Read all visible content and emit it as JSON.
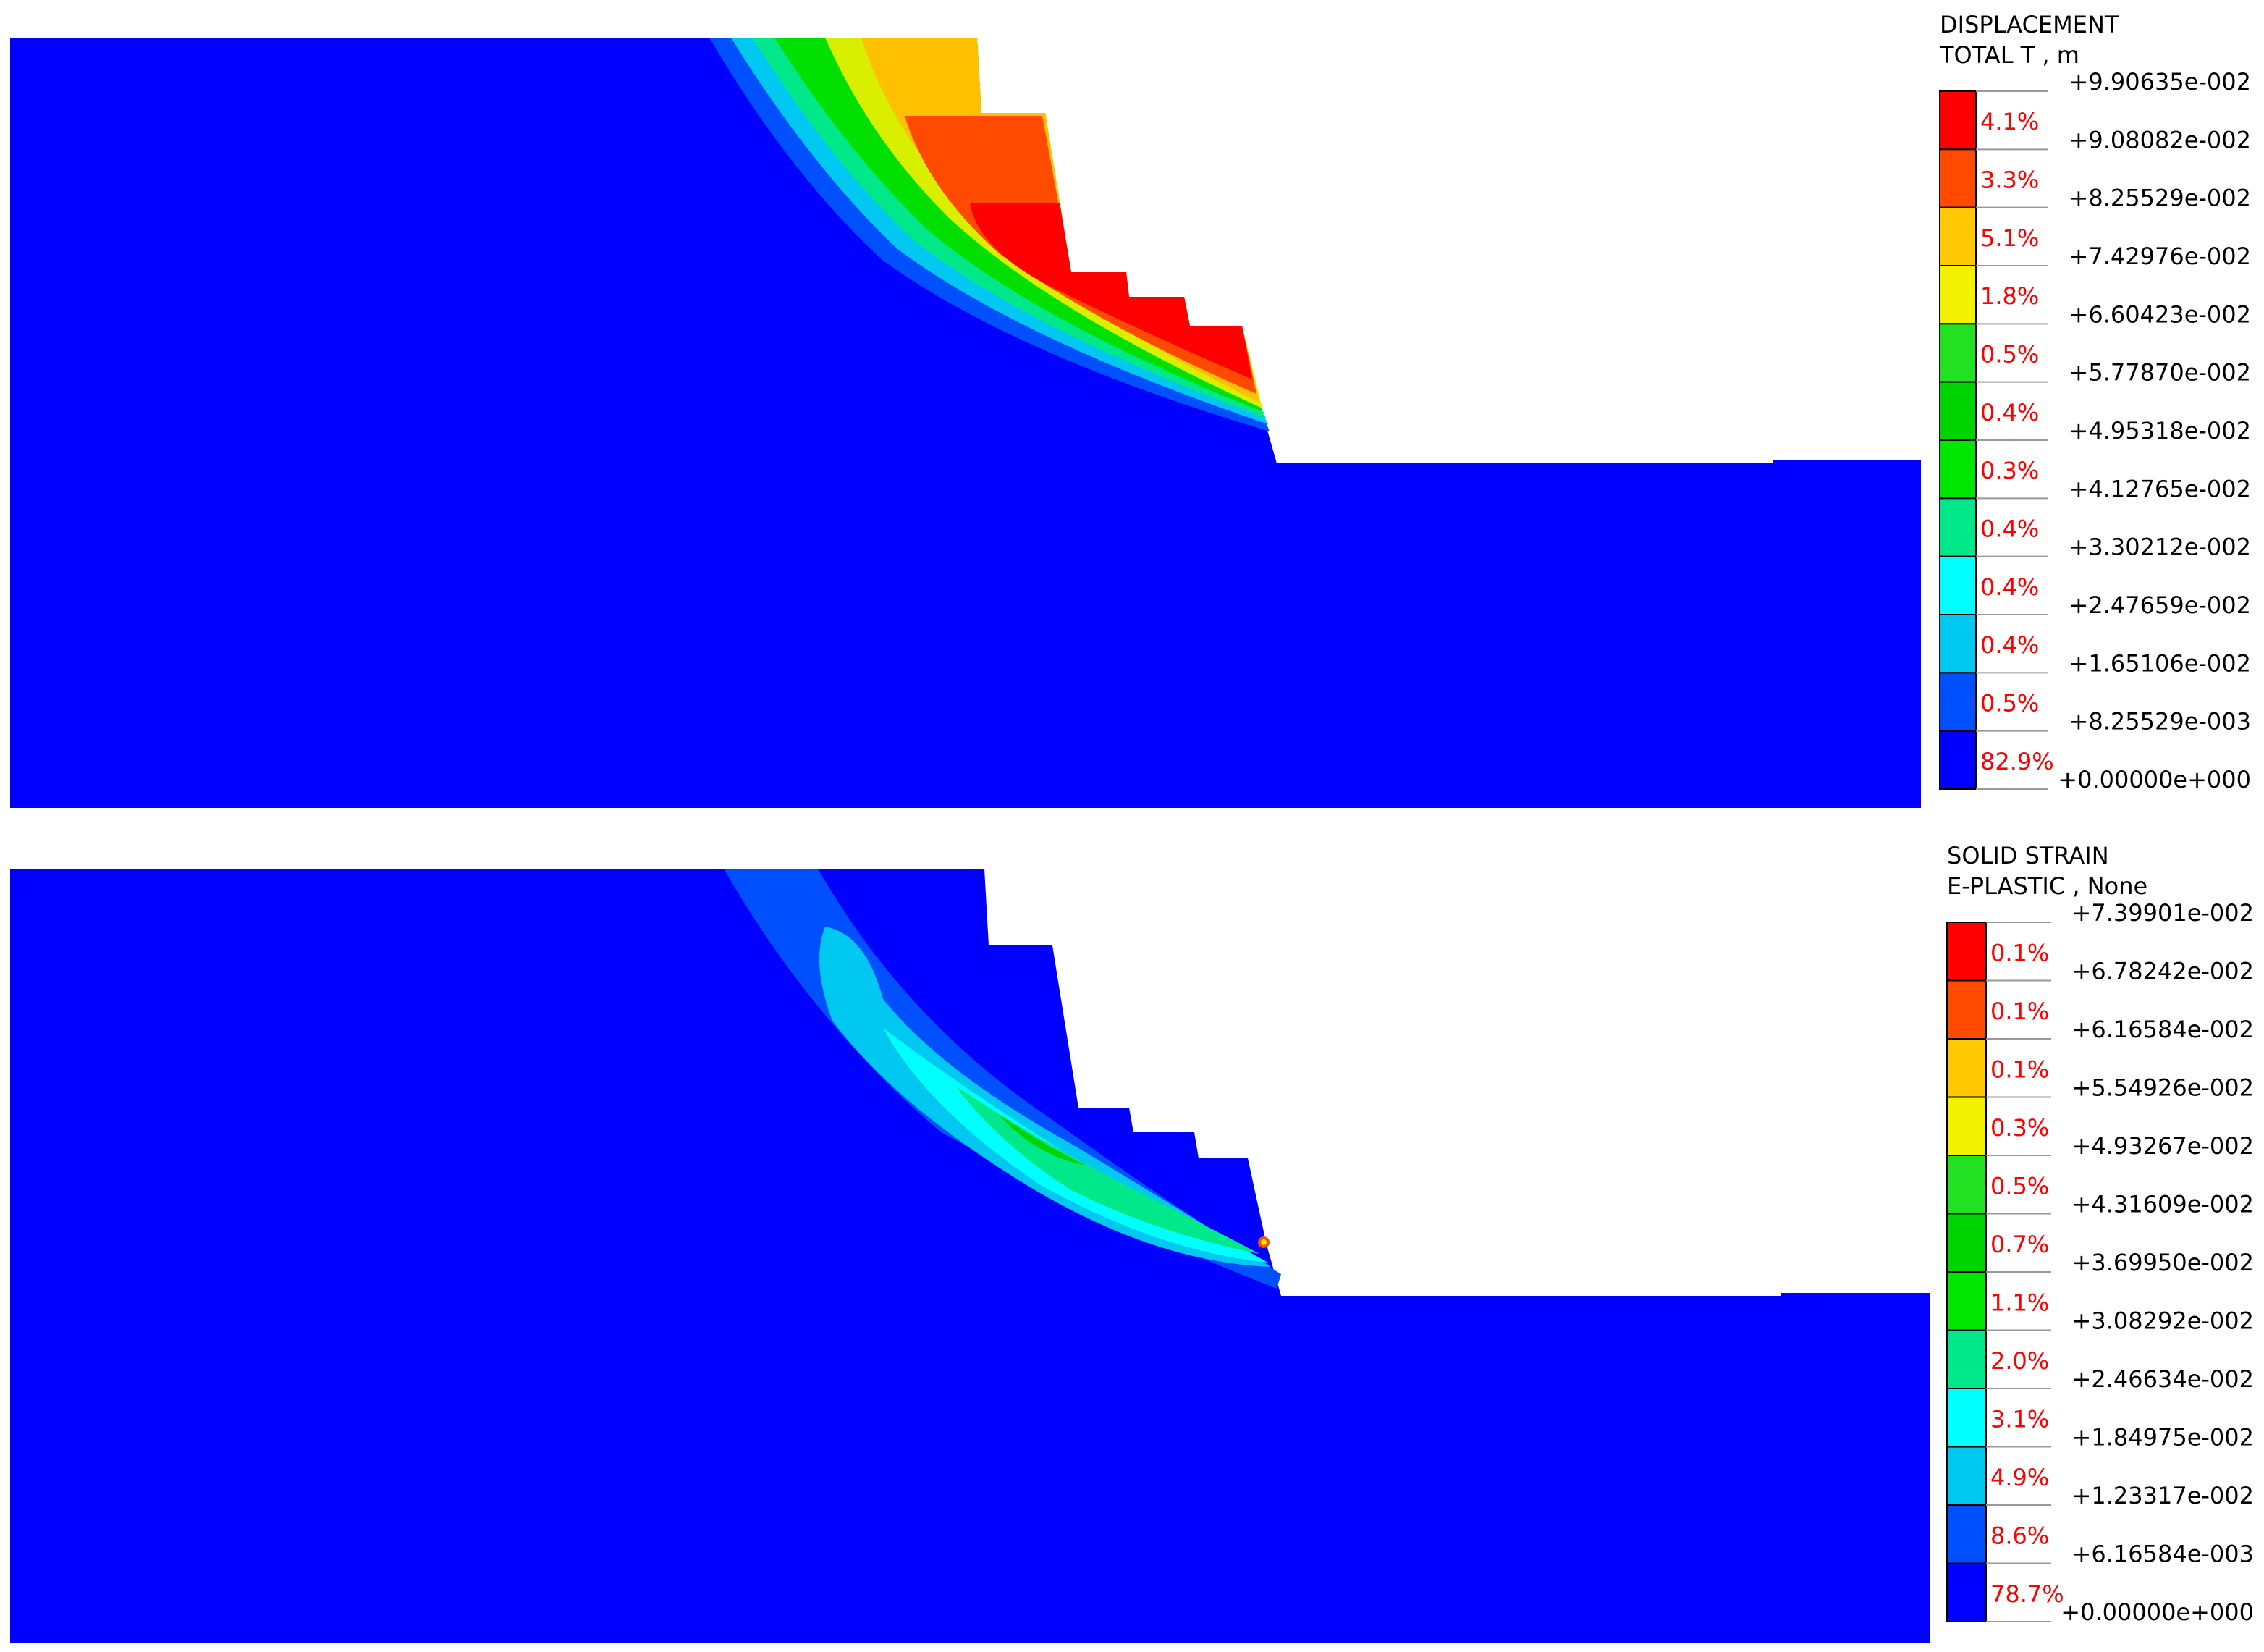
{
  "panels": [
    {
      "legend": {
        "title": [
          "DISPLACEMENT",
          "TOTAL T , m"
        ],
        "levels": [
          "+9.90635e-002",
          "+9.08082e-002",
          "+8.25529e-002",
          "+7.42976e-002",
          "+6.60423e-002",
          "+5.77870e-002",
          "+4.95318e-002",
          "+4.12765e-002",
          "+3.30212e-002",
          "+2.47659e-002",
          "+1.65106e-002",
          "+8.25529e-003",
          "+0.00000e+000"
        ],
        "percents": [
          "4.1%",
          "3.3%",
          "5.1%",
          "1.8%",
          "0.5%",
          "0.4%",
          "0.3%",
          "0.4%",
          "0.4%",
          "0.4%",
          "0.5%",
          "82.9%"
        ],
        "colors": [
          "#ff0000",
          "#ff4a00",
          "#ffc800",
          "#f2f200",
          "#22e022",
          "#00d400",
          "#00e600",
          "#00e88a",
          "#00ffff",
          "#00c8f0",
          "#0050ff",
          "#0000ff"
        ]
      }
    },
    {
      "legend": {
        "title": [
          "SOLID STRAIN",
          "E-PLASTIC , None"
        ],
        "levels": [
          "+7.39901e-002",
          "+6.78242e-002",
          "+6.16584e-002",
          "+5.54926e-002",
          "+4.93267e-002",
          "+4.31609e-002",
          "+3.69950e-002",
          "+3.08292e-002",
          "+2.46634e-002",
          "+1.84975e-002",
          "+1.23317e-002",
          "+6.16584e-003",
          "+0.00000e+000"
        ],
        "percents": [
          "0.1%",
          "0.1%",
          "0.1%",
          "0.3%",
          "0.5%",
          "0.7%",
          "1.1%",
          "2.0%",
          "3.1%",
          "4.9%",
          "8.6%",
          "78.7%"
        ],
        "colors": [
          "#ff0000",
          "#ff4a00",
          "#ffc800",
          "#f2f200",
          "#22e022",
          "#00d400",
          "#00e600",
          "#00e88a",
          "#00ffff",
          "#00c8f0",
          "#0050ff",
          "#0000ff"
        ]
      }
    }
  ]
}
